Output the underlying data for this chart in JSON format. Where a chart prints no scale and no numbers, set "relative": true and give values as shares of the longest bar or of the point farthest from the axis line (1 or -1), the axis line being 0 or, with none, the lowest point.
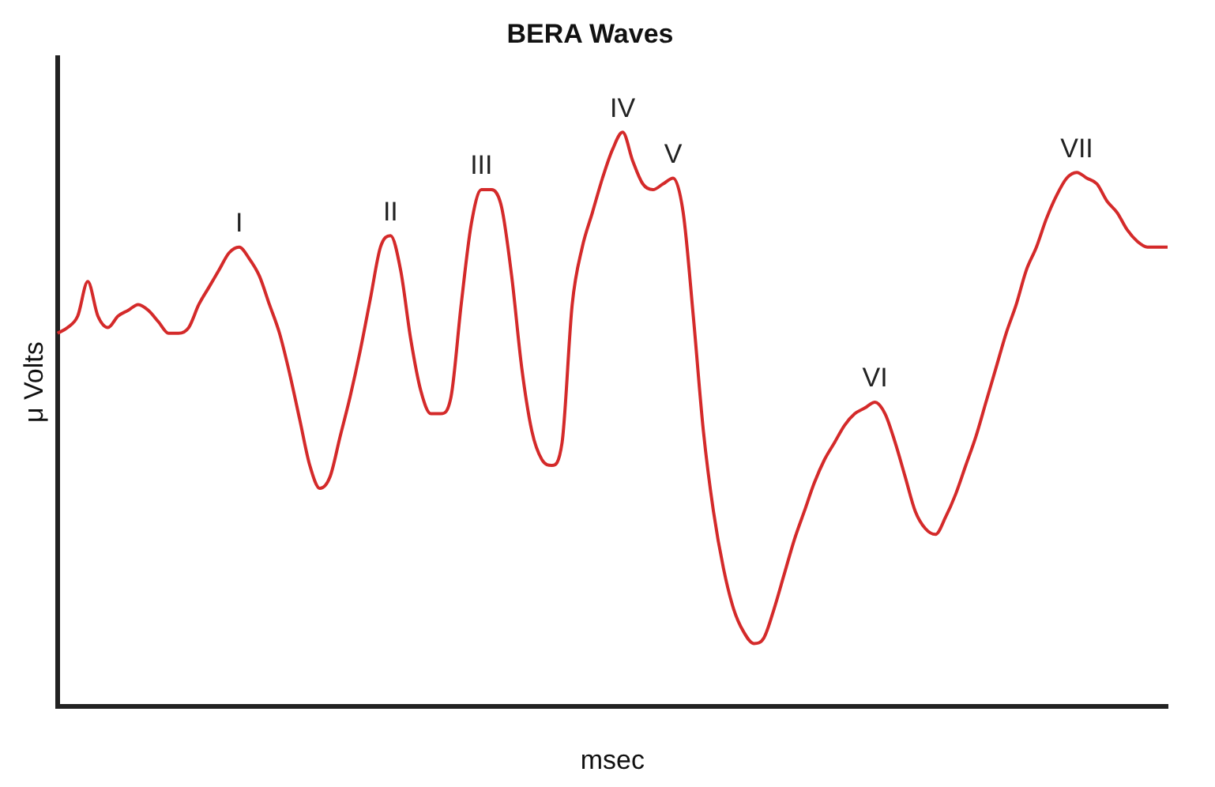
{
  "chart_data": {
    "type": "line",
    "title": "BERA Waves",
    "xlabel": "msec",
    "ylabel": "μ Volts",
    "relative": true,
    "legend": false,
    "grid": false,
    "marker": "none",
    "line_style": "solid",
    "categories": [
      null,
      null,
      null,
      null,
      null,
      null,
      null,
      null,
      null,
      null,
      null,
      null,
      null,
      null,
      null,
      null,
      null,
      null,
      null,
      null,
      null,
      null,
      null,
      null,
      null,
      null,
      null,
      null,
      null,
      null,
      null,
      null,
      null,
      null,
      null,
      null,
      null,
      null,
      null,
      null,
      null,
      null,
      null,
      null,
      null,
      null,
      null,
      null,
      null,
      null,
      null,
      null,
      null,
      null,
      null,
      null,
      null,
      null,
      null,
      null,
      null,
      null,
      null,
      null,
      null,
      null,
      null,
      null,
      null,
      null,
      null,
      null,
      null,
      null,
      null,
      null,
      null,
      null,
      null,
      null,
      null,
      null,
      null,
      null,
      null,
      null,
      null,
      null,
      null,
      null,
      null,
      null,
      null,
      null,
      null,
      null,
      null,
      null,
      null,
      null,
      null,
      null,
      null,
      null,
      null,
      null,
      null,
      null,
      null,
      null,
      null
    ],
    "series": [
      {
        "color": "#d42a2a",
        "values": [
          0.65,
          0.66,
          0.68,
          0.74,
          0.68,
          0.66,
          0.68,
          0.69,
          0.7,
          0.69,
          0.67,
          0.65,
          0.65,
          0.66,
          0.7,
          0.73,
          0.76,
          0.79,
          0.8,
          0.78,
          0.75,
          0.7,
          0.65,
          0.58,
          0.5,
          0.42,
          0.38,
          0.4,
          0.47,
          0.54,
          0.62,
          0.71,
          0.8,
          0.82,
          0.76,
          0.64,
          0.55,
          0.51,
          0.51,
          0.54,
          0.7,
          0.84,
          0.9,
          0.9,
          0.87,
          0.75,
          0.59,
          0.48,
          0.43,
          0.42,
          0.46,
          0.7,
          0.8,
          0.86,
          0.92,
          0.97,
          1.0,
          0.95,
          0.91,
          0.9,
          0.91,
          0.92,
          0.86,
          0.68,
          0.48,
          0.34,
          0.24,
          0.17,
          0.13,
          0.11,
          0.12,
          0.17,
          0.23,
          0.29,
          0.34,
          0.39,
          0.43,
          0.46,
          0.49,
          0.51,
          0.52,
          0.53,
          0.51,
          0.46,
          0.4,
          0.34,
          0.31,
          0.3,
          0.33,
          0.37,
          0.42,
          0.47,
          0.53,
          0.59,
          0.65,
          0.7,
          0.76,
          0.8,
          0.85,
          0.89,
          0.92,
          0.93,
          0.92,
          0.91,
          0.88,
          0.86,
          0.83,
          0.81,
          0.8,
          0.8,
          0.8
        ]
      }
    ],
    "annotations": [
      {
        "text": "I",
        "y": 0.8
      },
      {
        "text": "II",
        "y": 0.82
      },
      {
        "text": "III",
        "y": 0.9
      },
      {
        "text": "IV",
        "y": 1.0
      },
      {
        "text": "V",
        "y": 0.92
      },
      {
        "text": "VI",
        "y": 0.53
      },
      {
        "text": "VII",
        "y": 0.93
      }
    ]
  }
}
